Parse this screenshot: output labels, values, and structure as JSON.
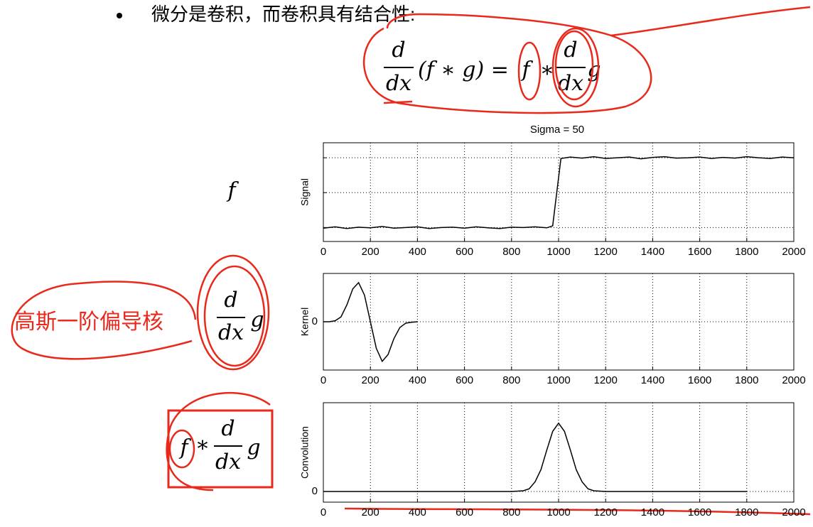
{
  "bullet": "微分是卷积，而卷积具有结合性:",
  "formula_top": {
    "numerator": "d",
    "denominator": "dx",
    "left": "(f ∗ g) =",
    "f": "f",
    "star": "∗",
    "numerator2": "d",
    "denominator2": "dx",
    "g": "g"
  },
  "label_f": "f",
  "annotation": "高斯一阶偏导核",
  "formula_kernel": {
    "numerator": "d",
    "denominator": "dx",
    "g": "g"
  },
  "formula_conv": {
    "f": "f",
    "star": "*",
    "numerator": "d",
    "denominator": "dx",
    "g": "g"
  },
  "chart_data": [
    {
      "type": "line",
      "title": "Sigma = 50",
      "ylabel": "Signal",
      "color": "#000000",
      "grid": true,
      "x": [
        0,
        50,
        100,
        150,
        200,
        250,
        300,
        350,
        400,
        450,
        500,
        550,
        600,
        650,
        700,
        750,
        800,
        850,
        900,
        950,
        975,
        1010,
        1050,
        1100,
        1150,
        1200,
        1250,
        1300,
        1350,
        1400,
        1450,
        1500,
        1550,
        1600,
        1650,
        1700,
        1750,
        1800,
        1850,
        1900,
        1950,
        2000
      ],
      "values": [
        -1.02,
        -0.98,
        -1.03,
        -0.99,
        -1.01,
        -0.97,
        -1.02,
        -1.0,
        -0.98,
        -1.03,
        -1.0,
        -0.99,
        -1.02,
        -0.98,
        -1.01,
        -1.03,
        -0.99,
        -1.0,
        -0.98,
        -1.01,
        -0.95,
        0.98,
        1.02,
        0.99,
        1.03,
        0.98,
        1.0,
        1.02,
        0.97,
        1.01,
        1.03,
        0.99,
        1.0,
        1.02,
        0.98,
        1.01,
        0.99,
        1.03,
        1.0,
        0.98,
        1.02,
        1.0
      ],
      "xlim": [
        0,
        2000
      ],
      "xticks": [
        0,
        200,
        400,
        600,
        800,
        1000,
        1200,
        1400,
        1600,
        1800,
        2000
      ],
      "ylim": [
        -1.4,
        1.43
      ],
      "ygrid": [
        -1,
        0,
        1
      ]
    },
    {
      "type": "line",
      "ylabel": "Kernel",
      "color": "#000000",
      "grid": true,
      "x": [
        0,
        25,
        50,
        75,
        100,
        125,
        150,
        175,
        200,
        225,
        250,
        275,
        300,
        325,
        350,
        375,
        400
      ],
      "values": [
        0,
        0,
        0.02,
        0.1,
        0.35,
        0.68,
        0.81,
        0.55,
        0,
        -0.55,
        -0.82,
        -0.68,
        -0.35,
        -0.12,
        -0.03,
        -0.01,
        0
      ],
      "xlim": [
        0,
        2000
      ],
      "xticks": [
        0,
        200,
        400,
        600,
        800,
        1000,
        1200,
        1400,
        1600,
        1800,
        2000
      ],
      "ylim": [
        -1,
        1
      ],
      "yticks": [
        0
      ]
    },
    {
      "type": "line",
      "ylabel": "Convolution",
      "color": "#000000",
      "grid": true,
      "x": [
        0,
        100,
        200,
        300,
        400,
        500,
        600,
        700,
        800,
        850,
        875,
        900,
        925,
        950,
        975,
        1000,
        1025,
        1050,
        1075,
        1100,
        1125,
        1150,
        1200,
        1300,
        1400,
        1500,
        1600,
        1700,
        1800
      ],
      "values": [
        0,
        0,
        0,
        0,
        0,
        0,
        0,
        0,
        0,
        0.01,
        0.04,
        0.14,
        0.32,
        0.61,
        0.88,
        1,
        0.88,
        0.61,
        0.32,
        0.14,
        0.04,
        0.01,
        0,
        0,
        0,
        0,
        0,
        0,
        0
      ],
      "xlim": [
        0,
        2000
      ],
      "xticks": [
        0,
        200,
        400,
        600,
        800,
        1000,
        1200,
        1400,
        1600,
        1800,
        2000
      ],
      "ylim": [
        -0.156,
        1.3
      ],
      "yticks": [
        0
      ]
    }
  ]
}
